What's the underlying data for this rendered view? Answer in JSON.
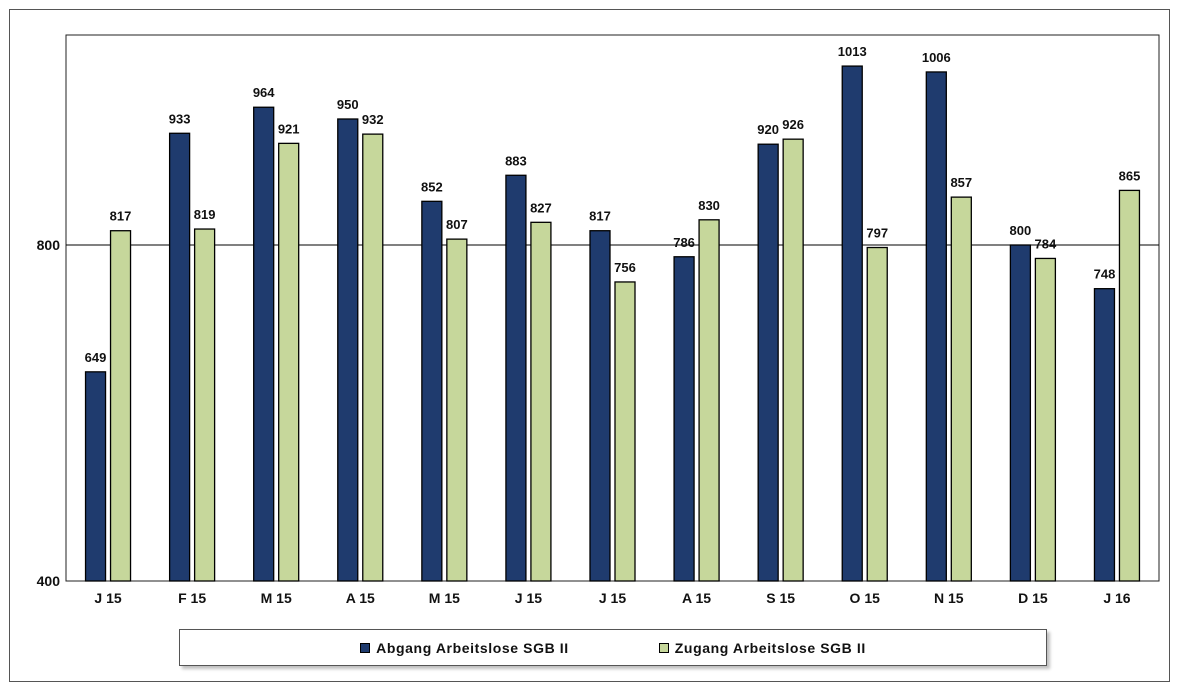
{
  "chart_data": {
    "type": "bar",
    "title": "",
    "xlabel": "",
    "ylabel": "",
    "categories": [
      "J 15",
      "F 15",
      "M 15",
      "A 15",
      "M 15",
      "J 15",
      "J 15",
      "A 15",
      "S 15",
      "O 15",
      "N 15",
      "D 15",
      "J 16"
    ],
    "series": [
      {
        "name": "Abgang Arbeitslose SGB II",
        "color": "#1f3b6e",
        "values": [
          649,
          933,
          964,
          950,
          852,
          883,
          817,
          786,
          920,
          1013,
          1006,
          800,
          748
        ]
      },
      {
        "name": "Zugang Arbeitslose SGB II",
        "color": "#c6d79b",
        "values": [
          817,
          819,
          921,
          932,
          807,
          827,
          756,
          830,
          926,
          797,
          857,
          784,
          865
        ]
      }
    ],
    "ylim": [
      400,
      1040
    ],
    "yticks": [
      "400",
      "800"
    ],
    "reference_line": 800,
    "data_labels": true,
    "grid": false,
    "legend_position": "bottom"
  }
}
